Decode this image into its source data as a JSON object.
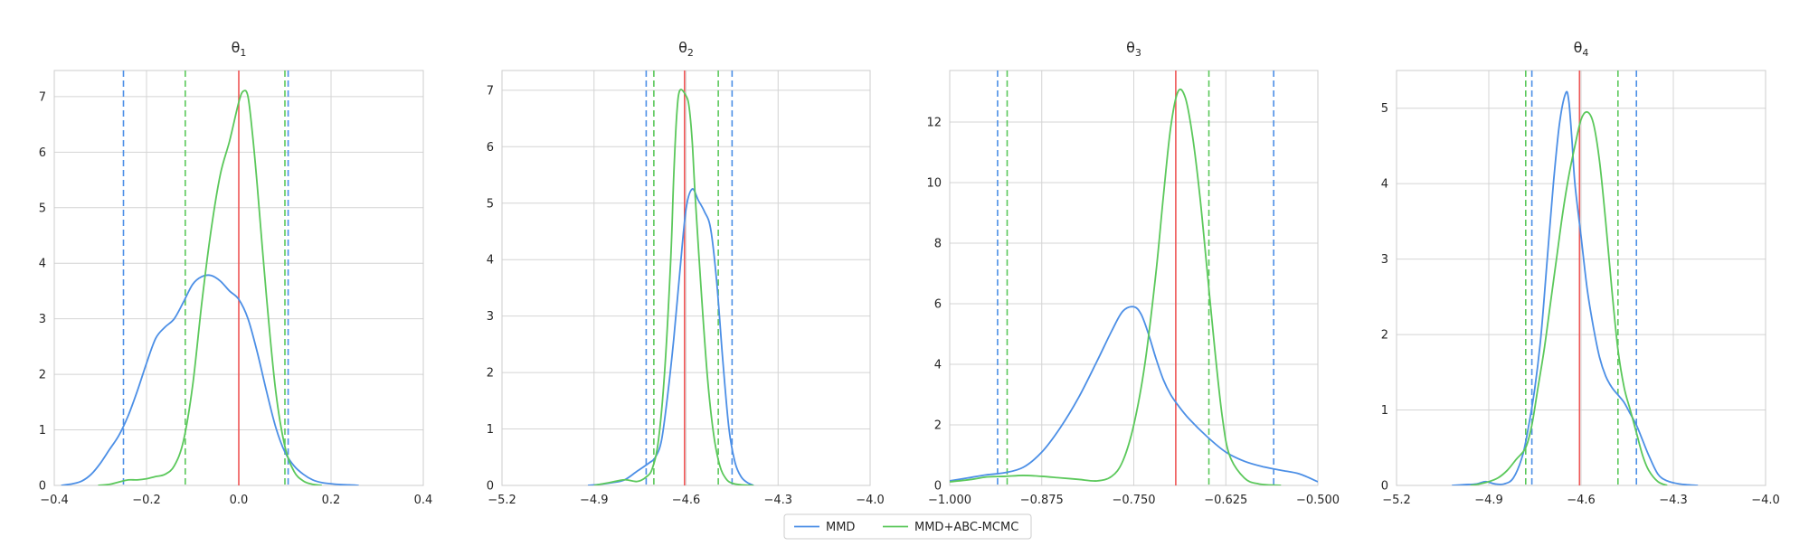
{
  "chart_data": [
    {
      "type": "line",
      "title": "θ",
      "title_sub": "1",
      "xlim": [
        -0.4,
        0.4
      ],
      "ylim": [
        0,
        7.47
      ],
      "xticks": [
        -0.4,
        -0.2,
        0.0,
        0.2,
        0.4
      ],
      "xtick_labels": [
        "−0.4",
        "−0.2",
        "0.0",
        "0.2",
        "0.4"
      ],
      "yticks": [
        0,
        1,
        2,
        3,
        4,
        5,
        6,
        7
      ],
      "ytick_labels": [
        "0",
        "1",
        "2",
        "3",
        "4",
        "5",
        "6",
        "7"
      ],
      "grid": true,
      "true_value": 0.0,
      "series": [
        {
          "name": "MMD",
          "x": [
            -0.385,
            -0.36,
            -0.34,
            -0.32,
            -0.3,
            -0.28,
            -0.26,
            -0.24,
            -0.22,
            -0.2,
            -0.18,
            -0.16,
            -0.14,
            -0.12,
            -0.1,
            -0.08,
            -0.06,
            -0.04,
            -0.02,
            0.0,
            0.02,
            0.04,
            0.06,
            0.08,
            0.1,
            0.12,
            0.14,
            0.16,
            0.18,
            0.2,
            0.22,
            0.24,
            0.26
          ],
          "y": [
            0.0,
            0.03,
            0.08,
            0.2,
            0.4,
            0.65,
            0.9,
            1.25,
            1.7,
            2.2,
            2.65,
            2.85,
            3.0,
            3.3,
            3.62,
            3.76,
            3.78,
            3.68,
            3.5,
            3.35,
            3.0,
            2.4,
            1.7,
            1.05,
            0.6,
            0.35,
            0.2,
            0.1,
            0.05,
            0.03,
            0.015,
            0.01,
            0.0
          ]
        },
        {
          "name": "MMD+ABC-MCMC",
          "x": [
            -0.305,
            -0.28,
            -0.26,
            -0.24,
            -0.22,
            -0.2,
            -0.18,
            -0.16,
            -0.14,
            -0.12,
            -0.1,
            -0.08,
            -0.06,
            -0.04,
            -0.02,
            0.0,
            0.01,
            0.02,
            0.03,
            0.04,
            0.06,
            0.08,
            0.1,
            0.12,
            0.14,
            0.16,
            0.18
          ],
          "y": [
            0.0,
            0.02,
            0.06,
            0.1,
            0.1,
            0.12,
            0.16,
            0.2,
            0.35,
            0.8,
            1.8,
            3.3,
            4.6,
            5.6,
            6.2,
            6.9,
            7.1,
            7.0,
            6.3,
            5.4,
            3.4,
            1.7,
            0.7,
            0.25,
            0.08,
            0.02,
            0.0
          ]
        }
      ],
      "intervals": [
        {
          "series": "MMD",
          "x": [
            -0.25,
            0.107
          ]
        },
        {
          "series": "MMD+ABC-MCMC",
          "x": [
            -0.116,
            0.1
          ]
        }
      ]
    },
    {
      "type": "line",
      "title": "θ",
      "title_sub": "2",
      "xlim": [
        -5.2,
        -4.0
      ],
      "ylim": [
        0,
        7.35
      ],
      "xticks": [
        -5.2,
        -4.9,
        -4.6,
        -4.3,
        -4.0
      ],
      "xtick_labels": [
        "−5.2",
        "−4.9",
        "−4.6",
        "−4.3",
        "−4.0"
      ],
      "yticks": [
        0,
        1,
        2,
        3,
        4,
        5,
        6,
        7
      ],
      "ytick_labels": [
        "0",
        "1",
        "2",
        "3",
        "4",
        "5",
        "6",
        "7"
      ],
      "grid": true,
      "true_value": -4.605,
      "series": [
        {
          "name": "MMD",
          "x": [
            -4.92,
            -4.88,
            -4.84,
            -4.8,
            -4.76,
            -4.72,
            -4.7,
            -4.68,
            -4.66,
            -4.64,
            -4.62,
            -4.6,
            -4.58,
            -4.56,
            -4.54,
            -4.52,
            -4.5,
            -4.48,
            -4.46,
            -4.44,
            -4.42,
            -4.4,
            -4.38
          ],
          "y": [
            0.0,
            0.02,
            0.05,
            0.1,
            0.25,
            0.4,
            0.5,
            0.8,
            1.6,
            2.6,
            3.8,
            4.9,
            5.25,
            5.05,
            4.85,
            4.55,
            3.6,
            2.2,
            1.0,
            0.4,
            0.15,
            0.05,
            0.0
          ]
        },
        {
          "name": "MMD+ABC-MCMC",
          "x": [
            -4.9,
            -4.85,
            -4.8,
            -4.76,
            -4.73,
            -4.71,
            -4.69,
            -4.67,
            -4.65,
            -4.64,
            -4.63,
            -4.62,
            -4.6,
            -4.59,
            -4.58,
            -4.57,
            -4.55,
            -4.53,
            -4.51,
            -4.49,
            -4.47,
            -4.45,
            -4.42,
            -4.38
          ],
          "y": [
            0.0,
            0.05,
            0.1,
            0.07,
            0.15,
            0.3,
            0.8,
            2.0,
            4.0,
            5.5,
            6.6,
            7.0,
            6.9,
            6.7,
            6.1,
            5.1,
            3.4,
            1.9,
            0.9,
            0.35,
            0.12,
            0.04,
            0.01,
            0.0
          ]
        }
      ],
      "intervals": [
        {
          "series": "MMD",
          "x": [
            -4.73,
            -4.45
          ]
        },
        {
          "series": "MMD+ABC-MCMC",
          "x": [
            -4.705,
            -4.495
          ]
        }
      ]
    },
    {
      "type": "line",
      "title": "θ",
      "title_sub": "3",
      "xlim": [
        -1.0,
        -0.5
      ],
      "ylim": [
        0,
        13.7
      ],
      "xticks": [
        -1.0,
        -0.875,
        -0.75,
        -0.625,
        -0.5
      ],
      "xtick_labels": [
        "−1.000",
        "−0.875",
        "−0.750",
        "−0.625",
        "−0.500"
      ],
      "yticks": [
        0,
        2,
        4,
        6,
        8,
        10,
        12
      ],
      "ytick_labels": [
        "0",
        "2",
        "4",
        "6",
        "8",
        "10",
        "12"
      ],
      "grid": true,
      "true_value": -0.693,
      "series": [
        {
          "name": "MMD",
          "x": [
            -1.0,
            -0.975,
            -0.95,
            -0.925,
            -0.9,
            -0.875,
            -0.85,
            -0.825,
            -0.8,
            -0.78,
            -0.765,
            -0.75,
            -0.74,
            -0.73,
            -0.72,
            -0.71,
            -0.7,
            -0.69,
            -0.675,
            -0.65,
            -0.625,
            -0.6,
            -0.575,
            -0.55,
            -0.525,
            -0.5
          ],
          "y": [
            0.15,
            0.25,
            0.35,
            0.42,
            0.6,
            1.1,
            1.9,
            2.9,
            4.1,
            5.1,
            5.75,
            5.9,
            5.65,
            5.0,
            4.2,
            3.5,
            3.0,
            2.65,
            2.2,
            1.6,
            1.1,
            0.8,
            0.62,
            0.5,
            0.38,
            0.12
          ]
        },
        {
          "name": "MMD+ABC-MCMC",
          "x": [
            -1.0,
            -0.97,
            -0.95,
            -0.925,
            -0.9,
            -0.875,
            -0.85,
            -0.825,
            -0.8,
            -0.78,
            -0.765,
            -0.75,
            -0.735,
            -0.72,
            -0.71,
            -0.7,
            -0.69,
            -0.68,
            -0.67,
            -0.66,
            -0.65,
            -0.64,
            -0.63,
            -0.62,
            -0.6,
            -0.58,
            -0.55
          ],
          "y": [
            0.12,
            0.2,
            0.28,
            0.3,
            0.33,
            0.3,
            0.25,
            0.2,
            0.15,
            0.3,
            0.8,
            2.0,
            4.0,
            7.0,
            9.5,
            11.8,
            13.0,
            12.8,
            11.5,
            9.5,
            7.0,
            4.5,
            2.3,
            1.0,
            0.25,
            0.05,
            0.0
          ]
        }
      ],
      "intervals": [
        {
          "series": "MMD",
          "x": [
            -0.935,
            -0.56
          ]
        },
        {
          "series": "MMD+ABC-MCMC",
          "x": [
            -0.922,
            -0.648
          ]
        }
      ]
    },
    {
      "type": "line",
      "title": "θ",
      "title_sub": "4",
      "xlim": [
        -5.2,
        -4.0
      ],
      "ylim": [
        0,
        5.5
      ],
      "xticks": [
        -5.2,
        -4.9,
        -4.6,
        -4.3,
        -4.0
      ],
      "xtick_labels": [
        "−5.2",
        "−4.9",
        "−4.6",
        "−4.3",
        "−4.0"
      ],
      "yticks": [
        0,
        1,
        2,
        3,
        4,
        5
      ],
      "ytick_labels": [
        "0",
        "1",
        "2",
        "3",
        "4",
        "5"
      ],
      "grid": true,
      "true_value": -4.605,
      "series": [
        {
          "name": "MMD",
          "x": [
            -5.02,
            -4.98,
            -4.94,
            -4.91,
            -4.88,
            -4.85,
            -4.82,
            -4.79,
            -4.77,
            -4.75,
            -4.73,
            -4.71,
            -4.69,
            -4.67,
            -4.65,
            -4.64,
            -4.63,
            -4.62,
            -4.6,
            -4.58,
            -4.56,
            -4.54,
            -4.52,
            -4.5,
            -4.48,
            -4.46,
            -4.44,
            -4.42,
            -4.4,
            -4.38,
            -4.35,
            -4.32,
            -4.28,
            -4.22
          ],
          "y": [
            0.0,
            0.01,
            0.02,
            0.05,
            0.02,
            0.02,
            0.1,
            0.4,
            0.8,
            1.3,
            2.0,
            3.0,
            4.0,
            4.8,
            5.2,
            5.1,
            4.6,
            4.0,
            3.3,
            2.6,
            2.1,
            1.7,
            1.45,
            1.3,
            1.2,
            1.1,
            0.95,
            0.8,
            0.6,
            0.4,
            0.15,
            0.06,
            0.02,
            0.0
          ]
        },
        {
          "name": "MMD+ABC-MCMC",
          "x": [
            -4.96,
            -4.93,
            -4.9,
            -4.87,
            -4.84,
            -4.81,
            -4.78,
            -4.76,
            -4.74,
            -4.72,
            -4.7,
            -4.68,
            -4.66,
            -4.64,
            -4.62,
            -4.6,
            -4.58,
            -4.56,
            -4.54,
            -4.52,
            -4.5,
            -4.48,
            -4.46,
            -4.44,
            -4.42,
            -4.4,
            -4.38,
            -4.35,
            -4.32
          ],
          "y": [
            0.0,
            0.02,
            0.05,
            0.1,
            0.2,
            0.35,
            0.5,
            0.8,
            1.3,
            1.8,
            2.4,
            3.0,
            3.6,
            4.1,
            4.5,
            4.85,
            4.95,
            4.8,
            4.3,
            3.5,
            2.6,
            1.8,
            1.3,
            1.0,
            0.7,
            0.4,
            0.2,
            0.05,
            0.0
          ]
        }
      ],
      "intervals": [
        {
          "series": "MMD",
          "x": [
            -4.76,
            -4.42
          ]
        },
        {
          "series": "MMD+ABC-MCMC",
          "x": [
            -4.78,
            -4.48
          ]
        }
      ]
    }
  ],
  "legend": {
    "position": "bottom-center",
    "entries": [
      {
        "label": "MMD",
        "color": "#4c8fe6"
      },
      {
        "label": "MMD+ABC-MCMC",
        "color": "#5bc85b"
      }
    ]
  },
  "colors": {
    "mmd": "#4c8fe6",
    "abc": "#5bc85b",
    "true_line": "#ee5555",
    "grid": "#d4d4d4",
    "frame": "#cccccc"
  }
}
